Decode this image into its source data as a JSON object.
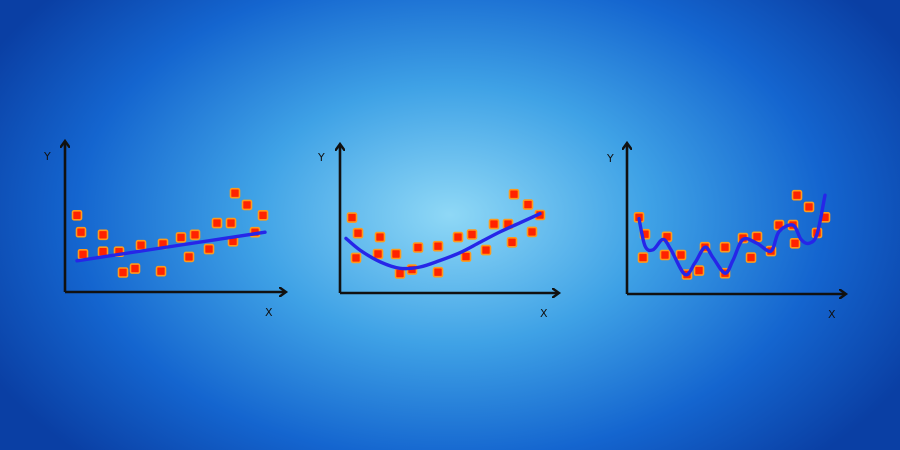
{
  "colors": {
    "axis": "#111111",
    "fit_line": "#2626e8",
    "point_fill": "#ff2200",
    "point_stroke": "#ff9a1a"
  },
  "chart_data": [
    {
      "type": "scatter",
      "fit": "linear",
      "xlabel": "X",
      "ylabel": "Y",
      "xlim": [
        0,
        10
      ],
      "ylim": [
        0,
        10
      ],
      "points": [
        {
          "x": 0.6,
          "y": 5.9
        },
        {
          "x": 0.8,
          "y": 4.6
        },
        {
          "x": 0.9,
          "y": 2.9
        },
        {
          "x": 1.9,
          "y": 4.4
        },
        {
          "x": 1.9,
          "y": 3.1
        },
        {
          "x": 2.7,
          "y": 3.1
        },
        {
          "x": 2.9,
          "y": 1.5
        },
        {
          "x": 3.5,
          "y": 1.8
        },
        {
          "x": 3.8,
          "y": 3.6
        },
        {
          "x": 4.9,
          "y": 3.7
        },
        {
          "x": 4.8,
          "y": 1.6
        },
        {
          "x": 5.8,
          "y": 4.2
        },
        {
          "x": 6.2,
          "y": 2.7
        },
        {
          "x": 6.5,
          "y": 4.4
        },
        {
          "x": 7.2,
          "y": 3.3
        },
        {
          "x": 7.6,
          "y": 5.3
        },
        {
          "x": 8.3,
          "y": 5.3
        },
        {
          "x": 8.4,
          "y": 3.9
        },
        {
          "x": 8.5,
          "y": 7.6
        },
        {
          "x": 9.1,
          "y": 6.7
        },
        {
          "x": 9.5,
          "y": 4.6
        },
        {
          "x": 9.9,
          "y": 5.9
        }
      ],
      "fit_curve": [
        {
          "x": 0.6,
          "y": 2.4
        },
        {
          "x": 10.0,
          "y": 4.6
        }
      ]
    },
    {
      "type": "scatter",
      "fit": "quadratic",
      "xlabel": "X",
      "ylabel": "Y",
      "xlim": [
        0,
        10
      ],
      "ylim": [
        0,
        10
      ],
      "points": [
        {
          "x": 0.6,
          "y": 5.8
        },
        {
          "x": 0.9,
          "y": 4.6
        },
        {
          "x": 0.8,
          "y": 2.7
        },
        {
          "x": 2.0,
          "y": 4.3
        },
        {
          "x": 1.9,
          "y": 3.0
        },
        {
          "x": 2.8,
          "y": 3.0
        },
        {
          "x": 3.0,
          "y": 1.5
        },
        {
          "x": 3.6,
          "y": 1.8
        },
        {
          "x": 3.9,
          "y": 3.5
        },
        {
          "x": 4.9,
          "y": 3.6
        },
        {
          "x": 4.9,
          "y": 1.6
        },
        {
          "x": 5.9,
          "y": 4.3
        },
        {
          "x": 6.3,
          "y": 2.8
        },
        {
          "x": 6.6,
          "y": 4.5
        },
        {
          "x": 7.3,
          "y": 3.3
        },
        {
          "x": 7.7,
          "y": 5.3
        },
        {
          "x": 8.4,
          "y": 5.3
        },
        {
          "x": 8.6,
          "y": 3.9
        },
        {
          "x": 8.7,
          "y": 7.6
        },
        {
          "x": 9.4,
          "y": 6.8
        },
        {
          "x": 9.6,
          "y": 4.7
        },
        {
          "x": 10.0,
          "y": 6.0
        }
      ],
      "fit_curve": [
        {
          "x": 0.3,
          "y": 4.2
        },
        {
          "x": 1.0,
          "y": 3.3
        },
        {
          "x": 2.0,
          "y": 2.4
        },
        {
          "x": 3.0,
          "y": 1.9
        },
        {
          "x": 4.0,
          "y": 2.0
        },
        {
          "x": 5.0,
          "y": 2.5
        },
        {
          "x": 6.0,
          "y": 3.1
        },
        {
          "x": 7.0,
          "y": 3.9
        },
        {
          "x": 8.0,
          "y": 4.7
        },
        {
          "x": 9.0,
          "y": 5.4
        },
        {
          "x": 10.0,
          "y": 6.1
        }
      ]
    },
    {
      "type": "scatter",
      "fit": "overfit",
      "xlabel": "X",
      "ylabel": "Y",
      "xlim": [
        0,
        10
      ],
      "ylim": [
        0,
        10
      ],
      "points": [
        {
          "x": 0.6,
          "y": 5.9
        },
        {
          "x": 0.9,
          "y": 4.6
        },
        {
          "x": 0.8,
          "y": 2.8
        },
        {
          "x": 2.0,
          "y": 4.4
        },
        {
          "x": 1.9,
          "y": 3.0
        },
        {
          "x": 2.7,
          "y": 3.0
        },
        {
          "x": 3.0,
          "y": 1.5
        },
        {
          "x": 3.6,
          "y": 1.8
        },
        {
          "x": 3.9,
          "y": 3.6
        },
        {
          "x": 4.9,
          "y": 3.6
        },
        {
          "x": 4.9,
          "y": 1.6
        },
        {
          "x": 5.8,
          "y": 4.3
        },
        {
          "x": 6.2,
          "y": 2.8
        },
        {
          "x": 6.5,
          "y": 4.4
        },
        {
          "x": 7.2,
          "y": 3.3
        },
        {
          "x": 7.6,
          "y": 5.3
        },
        {
          "x": 8.3,
          "y": 5.3
        },
        {
          "x": 8.4,
          "y": 3.9
        },
        {
          "x": 8.5,
          "y": 7.6
        },
        {
          "x": 9.1,
          "y": 6.7
        },
        {
          "x": 9.5,
          "y": 4.7
        },
        {
          "x": 9.9,
          "y": 5.9
        }
      ],
      "fit_curve": [
        {
          "x": 0.6,
          "y": 5.8
        },
        {
          "x": 0.9,
          "y": 3.7
        },
        {
          "x": 1.3,
          "y": 3.4
        },
        {
          "x": 1.8,
          "y": 4.2
        },
        {
          "x": 2.2,
          "y": 3.4
        },
        {
          "x": 2.9,
          "y": 1.5
        },
        {
          "x": 3.4,
          "y": 2.4
        },
        {
          "x": 3.9,
          "y": 3.6
        },
        {
          "x": 4.3,
          "y": 2.8
        },
        {
          "x": 4.9,
          "y": 1.6
        },
        {
          "x": 5.3,
          "y": 2.6
        },
        {
          "x": 5.8,
          "y": 4.2
        },
        {
          "x": 6.5,
          "y": 3.9
        },
        {
          "x": 7.2,
          "y": 3.3
        },
        {
          "x": 7.6,
          "y": 4.8
        },
        {
          "x": 8.3,
          "y": 5.3
        },
        {
          "x": 8.7,
          "y": 4.2
        },
        {
          "x": 9.1,
          "y": 3.9
        },
        {
          "x": 9.5,
          "y": 4.6
        },
        {
          "x": 9.9,
          "y": 7.6
        }
      ]
    }
  ]
}
